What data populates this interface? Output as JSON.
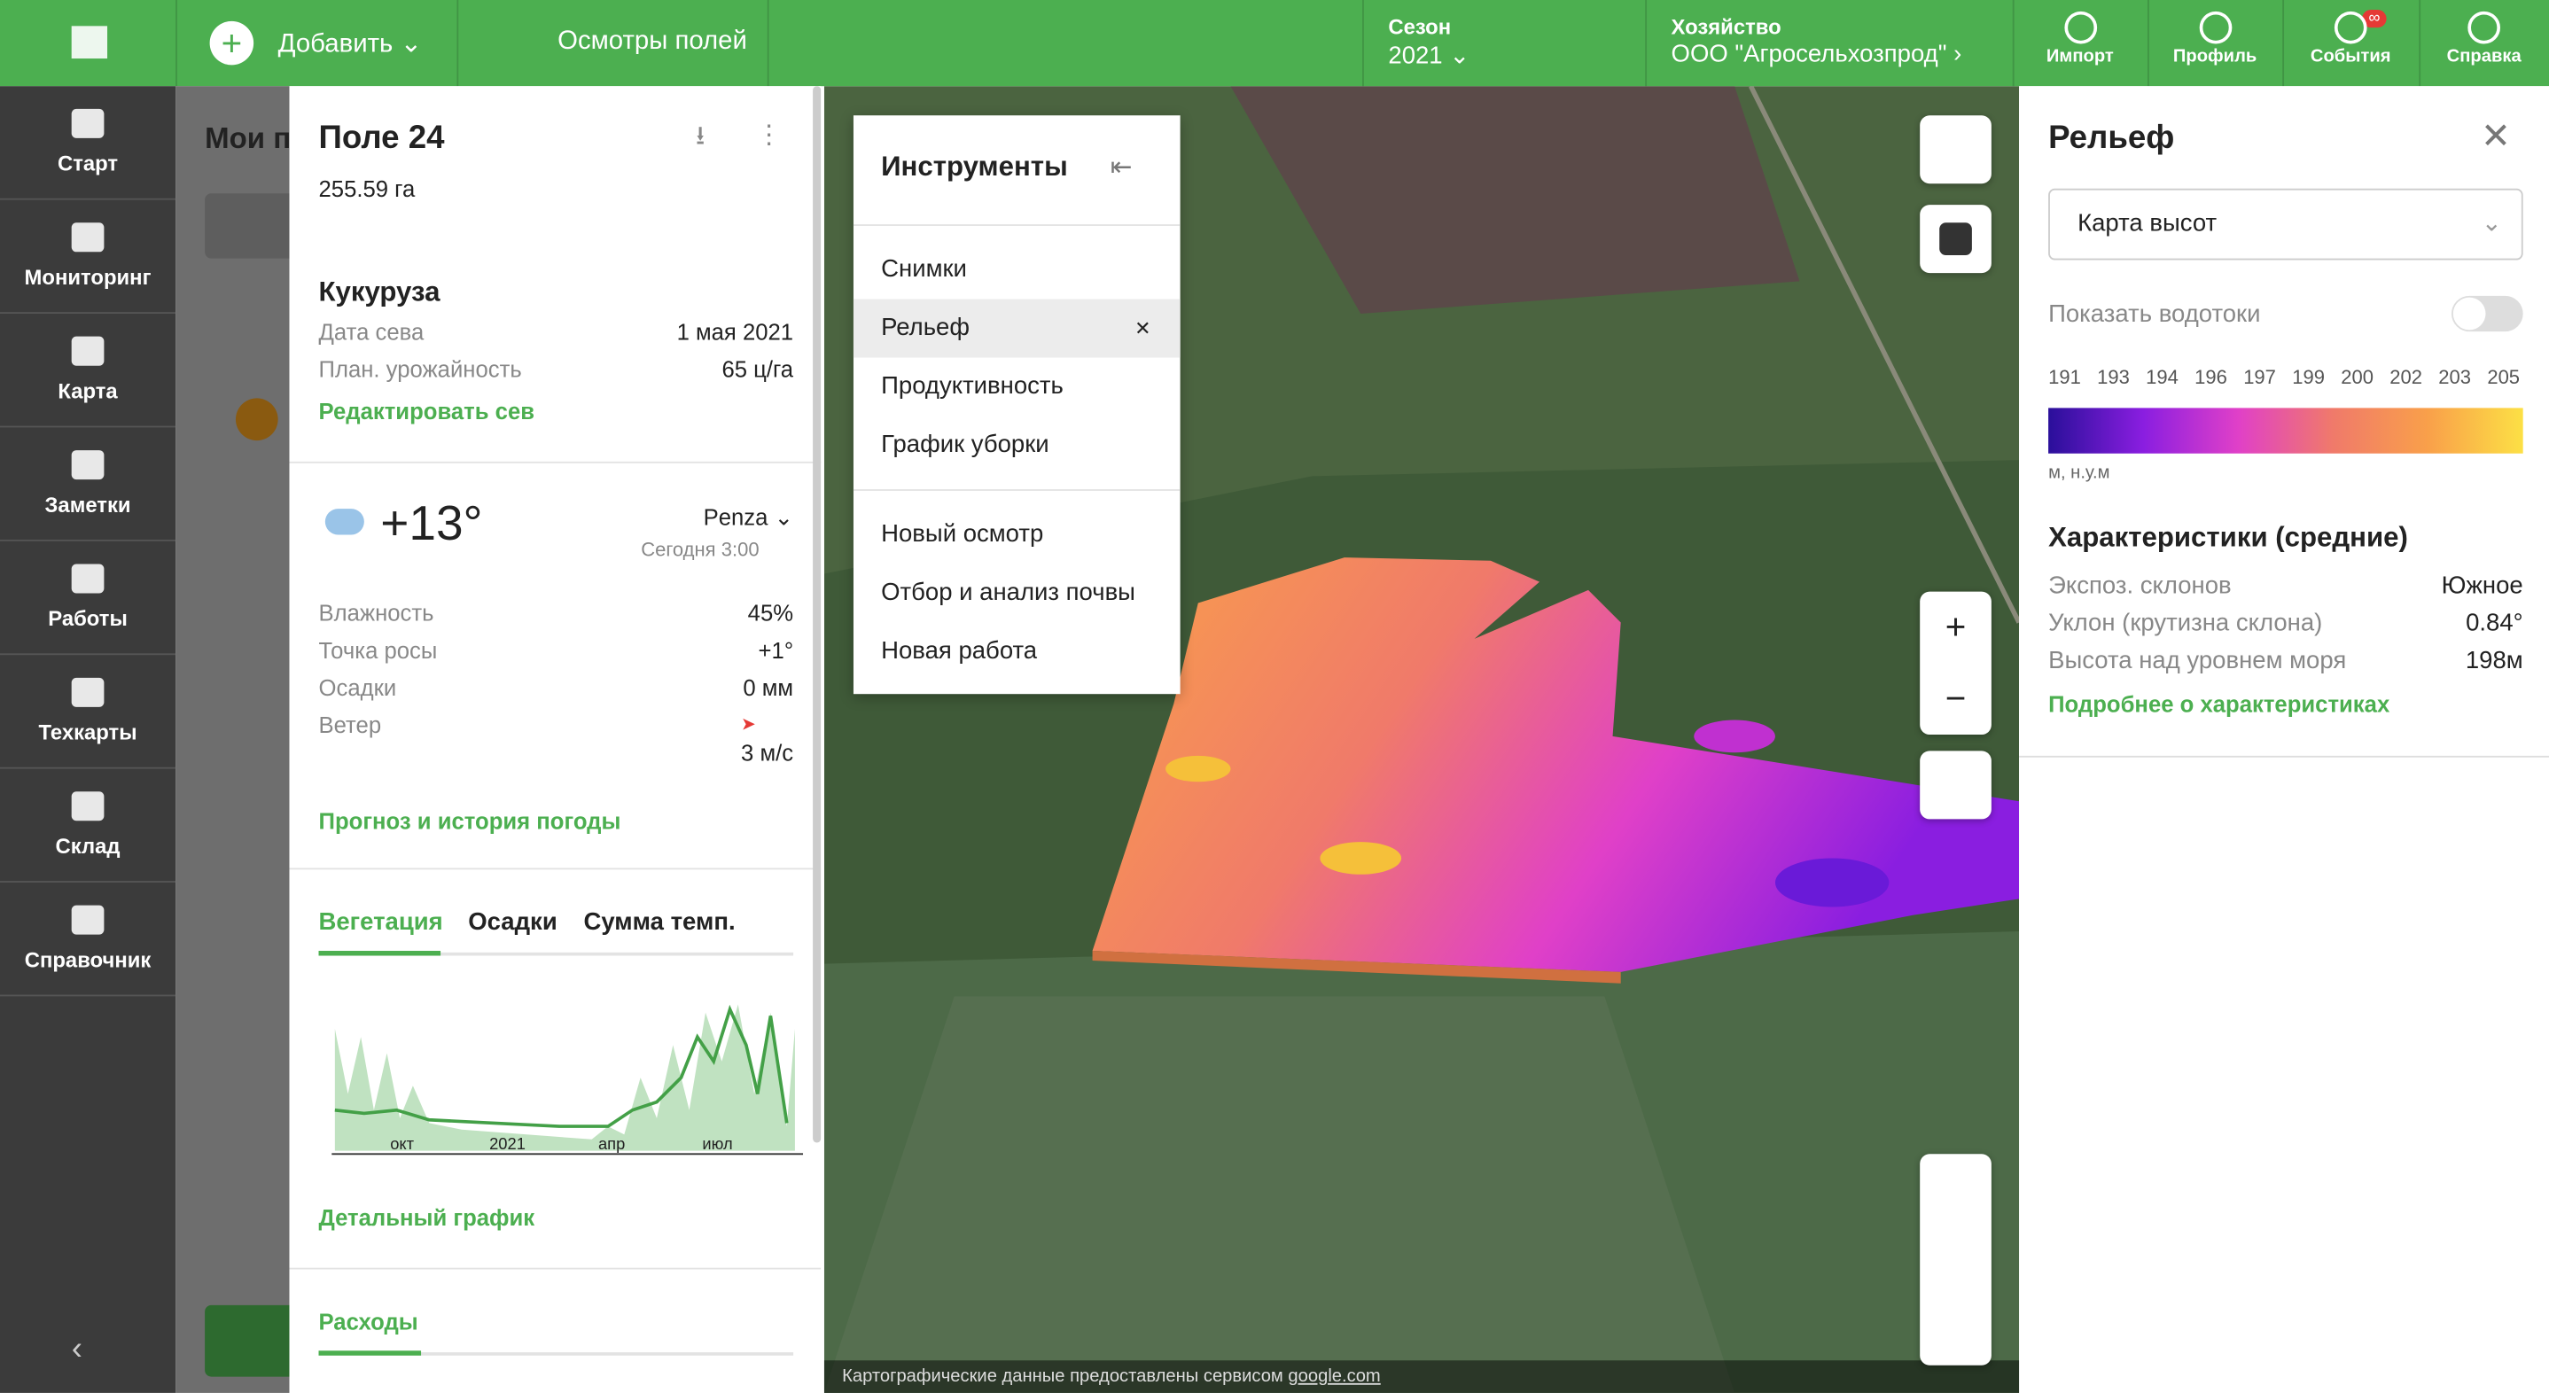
{
  "topbar": {
    "add": "Добавить",
    "inspections": "Осмотры полей",
    "season_label": "Сезон",
    "season": "2021",
    "farm_label": "Хозяйство",
    "farm": "ООО \"Агросельхозпрод\"",
    "buttons": [
      "Импорт",
      "Профиль",
      "События",
      "Справка"
    ],
    "events_badge": "∞"
  },
  "sidebar": {
    "items": [
      "Старт",
      "Мониторинг",
      "Карта",
      "Заметки",
      "Работы",
      "Техкарты",
      "Склад",
      "Справочник"
    ]
  },
  "background_list": {
    "title": "Мои п"
  },
  "field": {
    "name": "Поле 24",
    "area": "255.59 га",
    "crop": "Кукуруза",
    "sowing_label": "Дата сева",
    "sowing_date": "1 мая 2021",
    "yield_label": "План. урожайность",
    "yield": "65 ц/га",
    "edit_link": "Редактировать сев"
  },
  "weather": {
    "temp": "+13°",
    "city": "Penza",
    "time": "Сегодня 3:00",
    "rows": [
      [
        "Влажность",
        "45%"
      ],
      [
        "Точка росы",
        "+1°"
      ],
      [
        "Осадки",
        "0 мм"
      ],
      [
        "Ветер",
        "3 м/с"
      ]
    ],
    "link": "Прогноз и история погоды"
  },
  "vegetation": {
    "tabs": [
      "Вегетация",
      "Осадки",
      "Сумма темп."
    ],
    "x_labels": [
      "окт",
      "2021",
      "апр",
      "июл"
    ],
    "link": "Детальный график",
    "expenses": "Расходы"
  },
  "tools": {
    "title": "Инструменты",
    "groups": [
      [
        "Снимки",
        "Рельеф",
        "Продуктивность",
        "График уборки"
      ],
      [
        "Новый осмотр",
        "Отбор и анализ почвы",
        "Новая работа"
      ]
    ]
  },
  "map": {
    "attribution": "Картографические данные предоставлены сервисом",
    "attribution_link": "google.com"
  },
  "relief": {
    "title": "Рельеф",
    "select": "Карта высот",
    "toggle_label": "Показать водотоки",
    "scale": [
      191,
      193,
      194,
      196,
      197,
      199,
      200,
      202,
      203,
      205
    ],
    "units": "м, н.у.м",
    "char_title": "Характеристики (средние)",
    "rows": [
      [
        "Экспоз. склонов",
        "Южное"
      ],
      [
        "Уклон (крутизна склона)",
        "0.84°"
      ],
      [
        "Высота над уровнем моря",
        "198м"
      ]
    ],
    "link": "Подробнее о характеристиках"
  }
}
